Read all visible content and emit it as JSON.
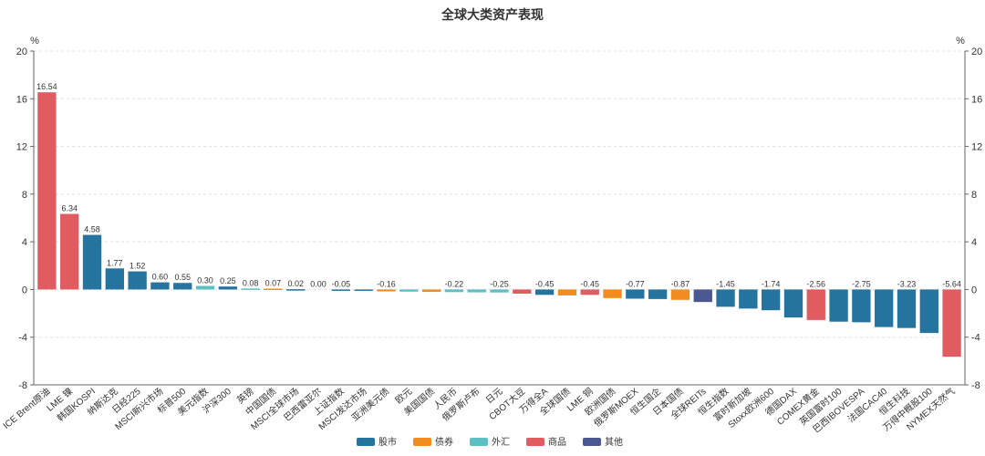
{
  "chart_data": {
    "type": "bar",
    "title": "全球大类资产表现",
    "y_unit_left": "%",
    "y_unit_right": "%",
    "ylim": [
      -8,
      20
    ],
    "yticks": [
      -8,
      -4,
      0,
      4,
      8,
      12,
      16,
      20
    ],
    "grid": true,
    "legend_position": "bottom",
    "legend": [
      {
        "key": "stock",
        "name": "股市",
        "color": "#25739f"
      },
      {
        "key": "bond",
        "name": "债券",
        "color": "#f28c1e"
      },
      {
        "key": "fx",
        "name": "外汇",
        "color": "#5bbfc4"
      },
      {
        "key": "commodity",
        "name": "商品",
        "color": "#e05c61"
      },
      {
        "key": "other",
        "name": "其他",
        "color": "#4a5791"
      }
    ],
    "categories": [
      "ICE Brent原油",
      "LME 镍",
      "韩国KOSPI",
      "纳斯达克",
      "日经225",
      "MSCI新兴市场",
      "标普500",
      "美元指数",
      "沪深300",
      "英镑",
      "中国国债",
      "MSCI全球市场",
      "巴西雷亚尔",
      "上证指数",
      "MSCI发达市场",
      "亚洲美元债",
      "欧元",
      "美国国债",
      "人民币",
      "俄罗斯卢布",
      "日元",
      "CBOT大豆",
      "万得全A",
      "全球国债",
      "LME 铜",
      "欧洲国债",
      "俄罗斯MOEX",
      "恒生国企",
      "日本国债",
      "全球REITs",
      "恒生指数",
      "富时新加坡",
      "Stoxx欧洲600",
      "德国DAX",
      "COMEX黄金",
      "英国富时100",
      "巴西IBOVESPA",
      "法国CAC40",
      "恒生科技",
      "万得中概股100",
      "NYMEX天然气"
    ],
    "values": [
      16.54,
      6.34,
      4.58,
      1.77,
      1.52,
      0.6,
      0.55,
      0.3,
      0.25,
      0.08,
      0.07,
      0.02,
      0.0,
      -0.05,
      -0.1,
      -0.16,
      -0.18,
      -0.2,
      -0.22,
      -0.24,
      -0.25,
      -0.35,
      -0.45,
      -0.5,
      -0.45,
      -0.72,
      -0.77,
      -0.8,
      -0.87,
      -1.05,
      -1.45,
      -1.6,
      -1.74,
      -2.35,
      -2.56,
      -2.7,
      -2.75,
      -3.15,
      -3.23,
      -3.65,
      -5.64
    ],
    "groups": [
      "commodity",
      "commodity",
      "stock",
      "stock",
      "stock",
      "stock",
      "stock",
      "fx",
      "stock",
      "fx",
      "bond",
      "stock",
      "fx",
      "stock",
      "stock",
      "bond",
      "fx",
      "bond",
      "fx",
      "fx",
      "fx",
      "commodity",
      "stock",
      "bond",
      "commodity",
      "bond",
      "stock",
      "stock",
      "bond",
      "other",
      "stock",
      "stock",
      "stock",
      "stock",
      "commodity",
      "stock",
      "stock",
      "stock",
      "stock",
      "stock",
      "commodity"
    ],
    "data_labels": [
      "16.54",
      "6.34",
      "4.58",
      "1.77",
      "1.52",
      "0.60",
      "0.55",
      "0.30",
      "0.25",
      "0.08",
      "0.07",
      "0.02",
      "0.00",
      "-0.05",
      "",
      "-0.16",
      "",
      "",
      "-0.22",
      "",
      "-0.25",
      "",
      "-0.45",
      "",
      "-0.45",
      "",
      "-0.77",
      "",
      "-0.87",
      "",
      "-1.45",
      "",
      "-1.74",
      "",
      "-2.56",
      "",
      "-2.75",
      "",
      "-3.23",
      "",
      "-5.64"
    ]
  }
}
